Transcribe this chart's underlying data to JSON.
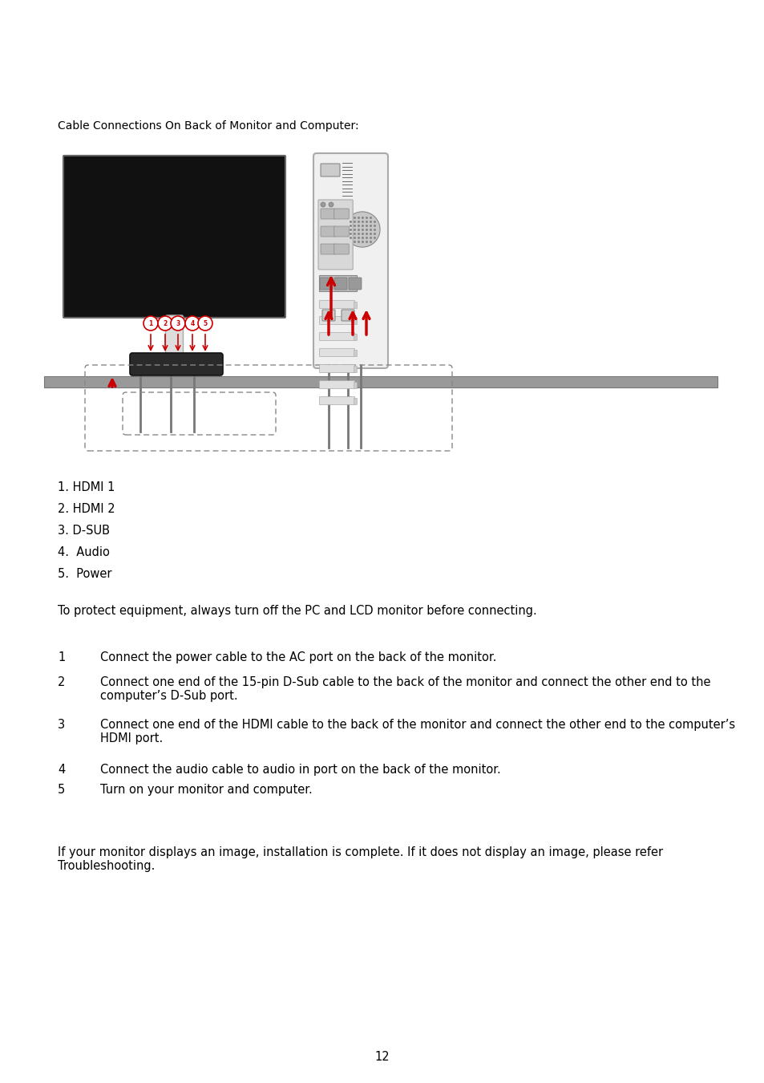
{
  "background_color": "#ffffff",
  "red": "#cc0000",
  "heading_text": "Cable Connections On Back of Monitor and Computer:",
  "list_items": [
    "1. HDMI 1",
    "2. HDMI 2",
    "3. D-SUB",
    "4.  Audio",
    "5.  Power"
  ],
  "warning_text": "To protect equipment, always turn off the PC and LCD monitor before connecting.",
  "instr_nums": [
    "1",
    "2",
    "3",
    "4",
    "5"
  ],
  "instr_texts": [
    "Connect the power cable to the AC port on the back of the monitor.",
    "Connect one end of the 15-pin D-Sub cable to the back of the monitor and connect the other end to the\ncomputer’s D-Sub port.",
    "Connect one end of the HDMI cable to the back of the monitor and connect the other end to the computer’s\nHDMI port.",
    "Connect the audio cable to audio in port on the back of the monitor.",
    "Turn on your monitor and computer."
  ],
  "footer_text": "If your monitor displays an image, installation is complete. If it does not display an image, please refer\nTroubleshooting.",
  "page_number": "12"
}
